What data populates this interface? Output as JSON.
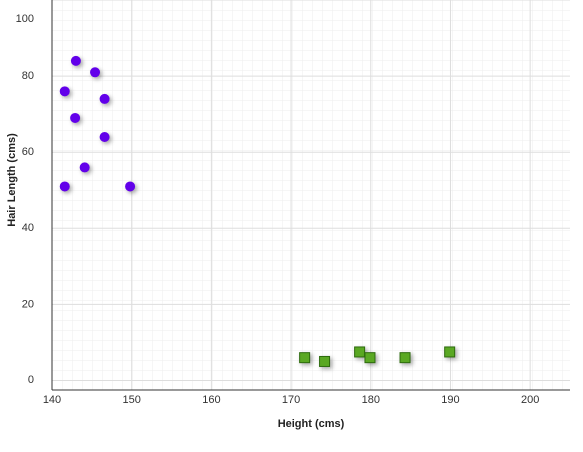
{
  "chart_data": {
    "type": "scatter",
    "x_label": "Height (cms)",
    "y_label": "Hair Length (cms)",
    "xlim": [
      140,
      205
    ],
    "ylim": [
      -2.5,
      100
    ],
    "xticks": [
      140,
      150,
      160,
      170,
      180,
      190,
      200
    ],
    "yticks": [
      0,
      20,
      40,
      60,
      80,
      100
    ],
    "grid": true,
    "series": [
      {
        "color": "#6200ea",
        "marker": "circle",
        "x": [
          143,
          145.4,
          141.6,
          146.6,
          142.9,
          146.6,
          144.1,
          141.6,
          149.8
        ],
        "values": [
          84,
          81,
          76,
          74,
          69,
          64,
          56,
          51,
          51
        ]
      },
      {
        "color": "#5aa823",
        "marker": "square",
        "x": [
          171.7,
          174.2,
          178.6,
          179.9,
          184.3,
          189.9
        ],
        "values": [
          6,
          5,
          7.5,
          6,
          6,
          7.5
        ]
      }
    ]
  }
}
